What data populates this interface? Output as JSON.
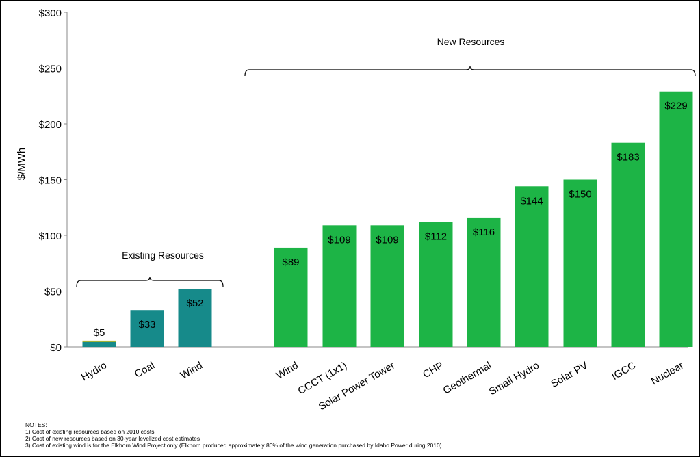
{
  "chart_data": {
    "type": "bar",
    "ylabel": "$/MWh",
    "ylim": [
      0,
      300
    ],
    "yticks": [
      0,
      50,
      100,
      150,
      200,
      250,
      300
    ],
    "ytick_labels": [
      "$0",
      "$50",
      "$100",
      "$150",
      "$200",
      "$250",
      "$300"
    ],
    "grid": false,
    "groups": [
      {
        "label": "Existing Resources",
        "color": "#168a8a",
        "categories": [
          "Hydro",
          "Coal",
          "Wind"
        ],
        "values": [
          5,
          33,
          52
        ],
        "data_labels": [
          "$5",
          "$33",
          "$52"
        ]
      },
      {
        "label": "New Resources",
        "color": "#1db446",
        "categories": [
          "Wind",
          "CCCT (1x1)",
          "Solar Power Tower",
          "CHP",
          "Geothermal",
          "Small Hydro",
          "Solar PV",
          "IGCC",
          "Nuclear"
        ],
        "values": [
          89,
          109,
          109,
          112,
          116,
          144,
          150,
          183,
          229
        ],
        "data_labels": [
          "$89",
          "$109",
          "$109",
          "$112",
          "$116",
          "$144",
          "$150",
          "$183",
          "$229"
        ]
      }
    ]
  },
  "notes": {
    "heading": "NOTES:",
    "items": [
      "1) Cost of existing resources based on 2010 costs",
      "2) Cost of new resources based on 30-year levelized cost estimates",
      "3) Cost of existing wind is for the Elkhorn Wind Project only (Elkhorn produced approximately 80% of the wind generation purchased by Idaho Power during 2010)."
    ]
  }
}
